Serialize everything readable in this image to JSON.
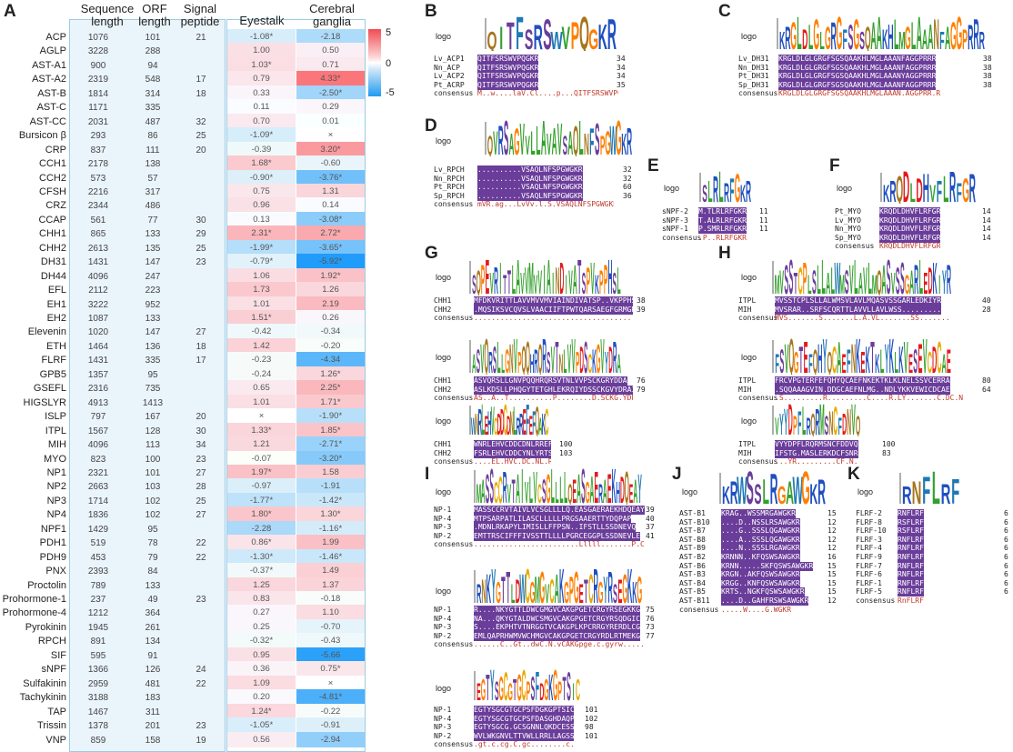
{
  "panel_labels": {
    "A": "A",
    "B": "B",
    "C": "C",
    "D": "D",
    "E": "E",
    "F": "F",
    "G": "G",
    "H": "H",
    "I": "I",
    "J": "J",
    "K": "K"
  },
  "table": {
    "headers": {
      "seq": "Sequence length",
      "orf": "ORF length",
      "sig": "Signal peptide",
      "eye": "Eyestalk",
      "cg": "Cerebral ganglia"
    },
    "legend": {
      "max": "5",
      "mid": "0",
      "min": "-5"
    },
    "rows": [
      [
        "ACP",
        "1076",
        "101",
        "21",
        "-1.08*",
        "-2.18"
      ],
      [
        "AGLP",
        "3228",
        "288",
        "",
        "1.00",
        "0.50"
      ],
      [
        "AST-A1",
        "900",
        "94",
        "",
        "1.03*",
        "0.71"
      ],
      [
        "AST-A2",
        "2319",
        "548",
        "17",
        "0.79",
        "4.33*"
      ],
      [
        "AST-B",
        "1814",
        "314",
        "18",
        "0.33",
        "-2.50*"
      ],
      [
        "AST-C",
        "1171",
        "335",
        "",
        "0.11",
        "0.29"
      ],
      [
        "AST-CC",
        "2031",
        "487",
        "32",
        "0.70",
        "0.01"
      ],
      [
        "Bursicon β",
        "293",
        "86",
        "25",
        "-1.09*",
        "×"
      ],
      [
        "CRP",
        "837",
        "111",
        "20",
        "-0.39",
        "3.20*"
      ],
      [
        "CCH1",
        "2178",
        "138",
        "",
        "1.68*",
        "-0.60"
      ],
      [
        "CCH2",
        "573",
        "57",
        "",
        "-0.90*",
        "-3.76*"
      ],
      [
        "CFSH",
        "2216",
        "317",
        "",
        "0.75",
        "1.31"
      ],
      [
        "CRZ",
        "2344",
        "486",
        "",
        "0.96",
        "0.14"
      ],
      [
        "CCAP",
        "561",
        "77",
        "30",
        "0.13",
        "-3.08*"
      ],
      [
        "CHH1",
        "865",
        "133",
        "29",
        "2.31*",
        "2.72*"
      ],
      [
        "CHH2",
        "2613",
        "135",
        "25",
        "-1.99*",
        "-3.65*"
      ],
      [
        "DH31",
        "1431",
        "147",
        "23",
        "-0.79*",
        "-5.92*"
      ],
      [
        "DH44",
        "4096",
        "247",
        "",
        "1.06",
        "1.92*"
      ],
      [
        "EFL",
        "2112",
        "223",
        "",
        "1.73",
        "1.26"
      ],
      [
        "EH1",
        "3222",
        "952",
        "",
        "1.01",
        "2.19"
      ],
      [
        "EH2",
        "1087",
        "133",
        "",
        "1.51*",
        "0.26"
      ],
      [
        "Elevenin",
        "1020",
        "147",
        "27",
        "-0.42",
        "-0.34"
      ],
      [
        "ETH",
        "1464",
        "136",
        "18",
        "1.42",
        "-0.20"
      ],
      [
        "FLRF",
        "1431",
        "335",
        "17",
        "-0.23",
        "-4.34"
      ],
      [
        "GPB5",
        "1357",
        "95",
        "",
        "-0.24",
        "1.26*"
      ],
      [
        "GSEFL",
        "2316",
        "735",
        "",
        "0.65",
        "2.25*"
      ],
      [
        "HIGSLYR",
        "4913",
        "1413",
        "",
        "1.01",
        "1.71*"
      ],
      [
        "ISLP",
        "797",
        "167",
        "20",
        "×",
        "-1.90*"
      ],
      [
        "ITPL",
        "1567",
        "128",
        "30",
        "1.33*",
        "1.85*"
      ],
      [
        "MIH",
        "4096",
        "113",
        "34",
        "1.21",
        "-2.71*"
      ],
      [
        "MYO",
        "823",
        "100",
        "23",
        "-0.07",
        "-3.20*"
      ],
      [
        "NP1",
        "2321",
        "101",
        "27",
        "1.97*",
        "1.58"
      ],
      [
        "NP2",
        "2663",
        "103",
        "28",
        "-0.97",
        "-1.91"
      ],
      [
        "NP3",
        "1714",
        "102",
        "25",
        "-1.77*",
        "-1.42*"
      ],
      [
        "NP4",
        "1836",
        "102",
        "27",
        "1.80*",
        "1.30*"
      ],
      [
        "NPF1",
        "1429",
        "95",
        "",
        "-2.28",
        "-1.16*"
      ],
      [
        "PDH1",
        "519",
        "78",
        "22",
        "0.86*",
        "1.99"
      ],
      [
        "PDH9",
        "453",
        "79",
        "22",
        "-1.30*",
        "-1.46*"
      ],
      [
        "PNX",
        "2393",
        "84",
        "",
        "-0.37*",
        "1.49"
      ],
      [
        "Proctolin",
        "789",
        "133",
        "",
        "1.25",
        "1.37"
      ],
      [
        "Prohormone-1",
        "237",
        "49",
        "23",
        "0.83",
        "-0.18"
      ],
      [
        "Prohormone-4",
        "1212",
        "364",
        "",
        "0.27",
        "1.10"
      ],
      [
        "Pyrokinin",
        "1945",
        "261",
        "",
        "0.25",
        "-0.70"
      ],
      [
        "RPCH",
        "891",
        "134",
        "",
        "-0.32*",
        "-0.43"
      ],
      [
        "SIF",
        "595",
        "91",
        "",
        "0.95",
        "-5.66"
      ],
      [
        "sNPF",
        "1366",
        "126",
        "24",
        "0.36",
        "0.75*"
      ],
      [
        "Sulfakinin",
        "2959",
        "481",
        "22",
        "1.09",
        "×"
      ],
      [
        "Tachykinin",
        "3188",
        "183",
        "",
        "0.20",
        "-4.81*"
      ],
      [
        "TAP",
        "1467",
        "311",
        "",
        "1.24*",
        "-0.22"
      ],
      [
        "Trissin",
        "1378",
        "201",
        "23",
        "-1.05*",
        "-0.91"
      ],
      [
        "VNP",
        "859",
        "158",
        "19",
        "0.56",
        "-2.94"
      ]
    ]
  },
  "alignments": {
    "logo_word": "logo",
    "consensus_word": "consensus",
    "B": [
      [
        "Lv_ACP1",
        "QITFSRSWVPQGKR",
        "34"
      ],
      [
        "Nn_ACP",
        "QITFSRSWVPQGKR",
        "34"
      ],
      [
        "Lv_ACP2",
        "QITFSRSWVPQGKR",
        "34"
      ],
      [
        "Pt_ACRP",
        "QITFSRSWVPQGKR",
        "35"
      ],
      [
        "consensus",
        "M..w....laV.Cl....p...QITFSRSWVPQGKR",
        ""
      ]
    ],
    "C": [
      [
        "Lv_DH31",
        "KRGLDLGLGRGFSGSQAAKHLMGLAAANFAGGPRRR",
        "38"
      ],
      [
        "Nn_DH31",
        "KRGLDLGLGRGFSGSQAAKHLMGLAAANFAGGPRRR",
        "38"
      ],
      [
        "Pt_DH31",
        "KRGLDLGLGRGFSGSQAAKHLMGLAAANYAGGPRRR",
        "38"
      ],
      [
        "Sp_DH31",
        "KRGLDLGLGRGFSGSQAAKHLMGLAAANFAGGPRRR",
        "38"
      ],
      [
        "consensus",
        "KRGLDLGLGRGFSGSQAAKHLMGLAAAN.AGGPRR.R",
        ""
      ]
    ],
    "D": [
      [
        "Lv_RPCH",
        "..........VSAQLNFSPGWGKR",
        "32"
      ],
      [
        "Nn_RPCH",
        "..........VSAQLNFSPGWGKR",
        "32"
      ],
      [
        "Pt_RPCH",
        "..........VSAQLNFSPGWGKR",
        "60"
      ],
      [
        "Sp_RPCH",
        "..........VSAQLNFSPGWGKR",
        "36"
      ],
      [
        "consensus",
        "mVR.ag...LvVv.l.S.VSAQLNFSPGWGKR",
        ""
      ]
    ],
    "E": [
      [
        "sNPF-2",
        "M.TLRLRFGKR",
        "11"
      ],
      [
        "sNPF-3",
        "T.ALRLRFGKR",
        "11"
      ],
      [
        "sNPF-1",
        "P.SMRLRFGKR",
        "11"
      ],
      [
        "consensus",
        ".P..RLRFGKR",
        ""
      ]
    ],
    "F": [
      [
        "Pt_MYO",
        "KRQDLDHVFLRFGR",
        "14"
      ],
      [
        "Lv_MYO",
        "KRQDLDHVFLRFGR",
        "14"
      ],
      [
        "Nn_MYO",
        "KRQDLDHVFLRFGR",
        "14"
      ],
      [
        "Sp_MYO",
        "KRQDLDHVFLRFGR",
        "14"
      ],
      [
        "consensus",
        "KRQDLDHVFLRFGR",
        ""
      ]
    ],
    "G": [
      [
        [
          "CHH1",
          "MFDKVRITTLAVVMVVMVIAINDIVATSP..VKPPHS",
          "38"
        ],
        [
          "CHH2",
          ".MQSIKSVCQVSLVAACIIFTPWTQARSAEGFGRMGRL",
          "39"
        ],
        [
          "consensus",
          "......................................L",
          ""
        ]
      ],
      [
        [
          "CHH1",
          "ASVQRSLLGNVPQQHRQRSVTNLVVPSCKGRYDDA",
          "76"
        ],
        [
          "CHH2",
          "ASLKDSLLPHQGYTETGHLEKRQIYDSSCKGVYDRAI",
          "79"
        ],
        [
          "consensus",
          "AS..A..T..........P........D.SCKG.YDR.",
          ""
        ]
      ],
      [
        [
          "CHH1",
          "WNRLEHVCDDCDNLRREFEFQAKC",
          "100"
        ],
        [
          "CHH2",
          "FSRLEHVCDDCYNLYRTSRVASGC",
          "103"
        ],
        [
          "consensus",
          "....EL.HVC.DC.NL.R.......C",
          ""
        ]
      ]
    ],
    "H": [
      [
        [
          "ITPL",
          "MVSSTCPLSLLALWMSVLAVLMQASVSSGARLEDKIYR",
          "40"
        ],
        [
          "MIH",
          "MVSRAR..SRFSCQRTTLAVVLLAVLWSS.........",
          "28"
        ],
        [
          "consensus",
          "MVS.......S.......L.A.VL.......SS.......",
          ""
        ]
      ],
      [
        [
          "ITPL",
          "FRCVPGTERFEFQHYQCAEFNKEKTKLKLNELSSVCERRA",
          "80"
        ],
        [
          "MIH",
          ".SQQAAAGVIN.DDGCAEFNLMG..NDLYKKVEWICDCAE",
          "64"
        ],
        [
          "consensus",
          ".S.........R.........C....R.LY.......C.DC.N",
          ""
        ]
      ],
      [
        [
          "ITPL",
          "VYYDPFLRQRMSNCFDDVQ",
          "100"
        ],
        [
          "MIH",
          "IFSTG.MASLERKDCFSNR",
          "83"
        ],
        [
          "consensus",
          "...YR.........CF.N.",
          ""
        ]
      ]
    ],
    "I": [
      [
        [
          "NP-1",
          "MASSCCRVTAIVLVCSGLLLLQ.EASGAERAEKHDQEAY",
          "39"
        ],
        [
          "NP-4",
          "MTPSARPATLILASCLLLLLPRGSAAERTTYDQPAP",
          "40"
        ],
        [
          "NP-3",
          ".MDNLRKAPYLIMISLLFFPSN..IFSTLLSSDNEVQ",
          "37"
        ],
        [
          "NP-2",
          "EMTTRSCIFFFIVSSTTLLLLPGRCEGGPLSSDNEVLE",
          "41"
        ],
        [
          "consensus",
          "........................Lllll.......P.C.......P",
          ""
        ]
      ],
      [
        [
          "NP-1",
          "R....NKYGTTLDWCGMGVCAKGPGETCRGYRSEGKKG",
          "75"
        ],
        [
          "NP-4",
          "NA...QKYGTALDWCSMGVCAKGPGETCRGYRSQDGIC",
          "76"
        ],
        [
          "NP-3",
          "S....EKPHTVTNRGGTVCAKGPLKPCRRGYRERDLCG",
          "73"
        ],
        [
          "NP-2",
          "EMLQAPRHWMVWCHMGVCAKGPGETCRGYRDLRTMEKG",
          "77"
        ],
        [
          "consensus",
          "......C..Gt..dwC.N.vCAKGpge.c.gyrw.....CG",
          ""
        ]
      ],
      [
        [
          "NP-1",
          "EGTYSGCGTGCPSFDGKGPTSIC",
          "101"
        ],
        [
          "NP-4",
          "EGTYSGCGTGCPSFDASGHDAQPC",
          "102"
        ],
        [
          "NP-3",
          "EGTYSGCG.GCSGNNLQKDCESS",
          "98"
        ],
        [
          "NP-2",
          "WVLWKGNVLTTVWLLRRLLAGSSMC",
          "101"
        ],
        [
          "consensus",
          ".gt.c.cg.C.gc........c.....c",
          ""
        ]
      ]
    ],
    "J": [
      [
        "AST-B1",
        "KRAG..WSSMRGAWGKR",
        "15"
      ],
      [
        "AST-B10",
        "....D..NSSLRSAWGKR",
        "12"
      ],
      [
        "AST-B7",
        "....G..SSSLQGAWGKR",
        "12"
      ],
      [
        "AST-B8",
        "....A..SSSLQGAWGKR",
        "12"
      ],
      [
        "AST-B9",
        "....N..SSSLRGAWGKR",
        "12"
      ],
      [
        "AST-B2",
        "KRNNN..KFQSWSAWGKR",
        "16"
      ],
      [
        "AST-B6",
        "KRNN.....SKFQSWSAWGKR",
        "15"
      ],
      [
        "AST-B3",
        "KRGN..AKFQSWSAWGKR",
        "15"
      ],
      [
        "AST-B4",
        "KRGG..KNFQSWSAWGKR",
        "15"
      ],
      [
        "AST-B5",
        "KRTS..NGKFQSWSAWGKR",
        "15"
      ],
      [
        "AST-B11",
        "....D..GAHFRSWSAWGKR",
        "12"
      ],
      [
        "consensus",
        ".....W....G.WGKR",
        ""
      ]
    ],
    "K": [
      [
        "FLRF-2",
        "RNFLRF",
        "6"
      ],
      [
        "FLRF-8",
        "RSFLRF",
        "6"
      ],
      [
        "FLRF-10",
        "RSFLRF",
        "6"
      ],
      [
        "FLRF-3",
        "RNFLRF",
        "6"
      ],
      [
        "FLRF-4",
        "RNFLRF",
        "6"
      ],
      [
        "FLRF-9",
        "RNFLRF",
        "6"
      ],
      [
        "FLRF-7",
        "RNFLRF",
        "6"
      ],
      [
        "FLRF-6",
        "RNFLRF",
        "6"
      ],
      [
        "FLRF-1",
        "RNFLRF",
        "6"
      ],
      [
        "FLRF-5",
        "RNFLRF",
        "6"
      ],
      [
        "consensus",
        "RnFLRF",
        ""
      ]
    ]
  },
  "logos": {
    "B": "QITFSRSWVPQGKR",
    "C": "KRGLDLGLGRGFSGSQAAKHLMGLAAANFAGGPRRR",
    "D": "QVRSAGVVLLAVAVSAQLNFSPGWGKR",
    "E": "SLRLRFGKR",
    "F": "KRQDLDHVFLRFGR",
    "G1": "SQPEVRITTLAVVMVVIAINDIVATSPVKPPHSL",
    "G2": "ASVQRSLLGNVPQQHRQRSVTNLVVPDSCKGVYDRA",
    "G3": "WNRLEHVCDDCDNLRREFEFQAKC",
    "H1": "MVSSTCPLSLLALWMSVLAVLMQASVSSGARLEDKIYR",
    "H2": "FSVQGTEFQHYQCAEFNKEKTKLYKLKVESEVCDCAE",
    "H3": "VYYDPFLRQRMSNCFDNVQ",
    "I1": "MASSCCRVTAIVLVCSGLLLLQEASGAERAEKHDQEAY",
    "I2": "RNKYGTTLDWCGMGVCAKGPGETCRGYRSEGKKG",
    "I3": "EGTYSGCGTGCPSFDGKGPTSIC",
    "J": "KRWSSLRGAWGKR",
    "K": "RNFLRF"
  }
}
